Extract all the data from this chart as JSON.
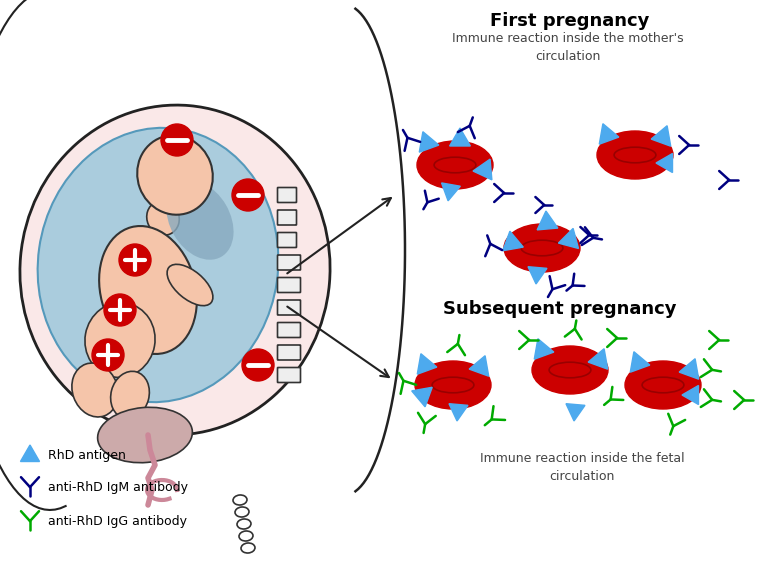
{
  "title_first": "First pregnancy",
  "title_subsequent": "Subsequent pregnancy",
  "subtitle_first": "Immune reaction inside the mother's\ncirculation",
  "subtitle_subsequent": "Immune reaction inside the fetal\ncirculation",
  "legend_items": [
    {
      "label": "RhD antigen",
      "color": "#4DAAEE",
      "type": "triangle"
    },
    {
      "label": "anti-RhD IgM antibody",
      "color": "#000080",
      "type": "Y"
    },
    {
      "label": "anti-RhD IgG antibody",
      "color": "#00AA00",
      "type": "Y"
    }
  ],
  "rbc_color": "#CC0000",
  "rbc_inner_color": "#990000",
  "antigen_color": "#4DAAEE",
  "igm_color": "#000080",
  "igg_color": "#00AA00",
  "bg_color": "#FFFFFF",
  "arrow_color": "#222222",
  "womb_fill": "#FAE8E8",
  "womb_edge": "#222222",
  "amniotic_fill": "#AACCDD",
  "fetus_skin": "#F5C5AA",
  "fetus_edge": "#333333",
  "plus_bg": "#CC0000",
  "minus_bg": "#CC0000",
  "spine_fill": "#EEEEEE",
  "spine_edge": "#333333",
  "cord_color": "#CC8899"
}
